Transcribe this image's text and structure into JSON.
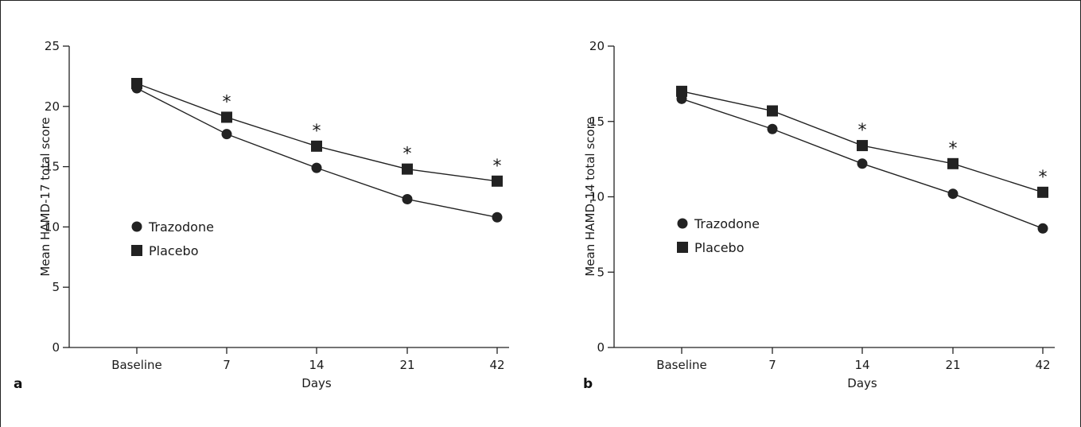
{
  "chart_data": [
    {
      "type": "line",
      "panel_label": "a",
      "xlabel": "Days",
      "ylabel": "Mean HAMD-17 total score",
      "categories": [
        "Baseline",
        "7",
        "14",
        "21",
        "42"
      ],
      "ylim": [
        0,
        25
      ],
      "yticks": [
        0,
        5,
        10,
        15,
        20,
        25
      ],
      "grid": false,
      "legend_position": "middle-left",
      "series": [
        {
          "name": "Trazodone",
          "marker": "circle",
          "values": [
            21.5,
            17.7,
            14.9,
            12.3,
            10.8
          ]
        },
        {
          "name": "Placebo",
          "marker": "square",
          "values": [
            21.9,
            19.1,
            16.7,
            14.8,
            13.8
          ]
        }
      ],
      "significance_marker": "*",
      "significance_at": [
        "7",
        "14",
        "21",
        "42"
      ]
    },
    {
      "type": "line",
      "panel_label": "b",
      "xlabel": "Days",
      "ylabel": "Mean HAMD-14 total score",
      "categories": [
        "Baseline",
        "7",
        "14",
        "21",
        "42"
      ],
      "ylim": [
        0,
        20
      ],
      "yticks": [
        0,
        5,
        10,
        15,
        20
      ],
      "grid": false,
      "legend_position": "middle-left",
      "series": [
        {
          "name": "Trazodone",
          "marker": "circle",
          "values": [
            16.5,
            14.5,
            12.2,
            10.2,
            7.9
          ]
        },
        {
          "name": "Placebo",
          "marker": "square",
          "values": [
            17.0,
            15.7,
            13.4,
            12.2,
            10.3
          ]
        }
      ],
      "significance_marker": "*",
      "significance_at": [
        "14",
        "21",
        "42"
      ]
    }
  ]
}
